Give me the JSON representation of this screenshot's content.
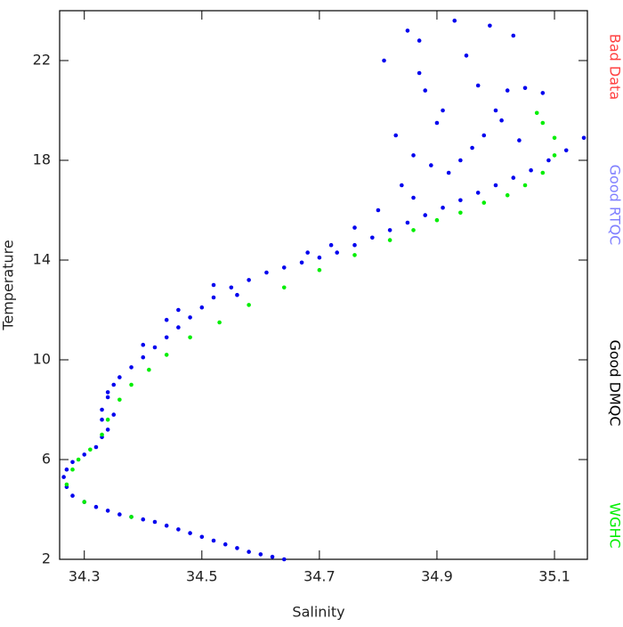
{
  "chart_data": {
    "type": "scatter",
    "x_label": "Salinity",
    "y_label": "Temperature",
    "xlim": [
      34.258,
      35.156
    ],
    "ylim": [
      2,
      24
    ],
    "xticks": [
      34.3,
      34.5,
      34.7,
      34.9,
      35.1
    ],
    "yticks": [
      2,
      6,
      10,
      14,
      18,
      22
    ],
    "series": [
      {
        "name": "Bad Data",
        "color": "#ff4040",
        "x": [],
        "y": []
      },
      {
        "name": "Good RTQC",
        "color": "#0000ee",
        "x": [
          34.64,
          34.62,
          34.6,
          34.58,
          34.56,
          34.54,
          34.52,
          34.5,
          34.48,
          34.46,
          34.44,
          34.42,
          34.4,
          34.38,
          34.36,
          34.34,
          34.32,
          34.3,
          34.28,
          34.27,
          34.265,
          34.27,
          34.28,
          34.3,
          34.32,
          34.33,
          34.34,
          34.33,
          34.33,
          34.34,
          34.35,
          34.36,
          34.38,
          34.4,
          34.42,
          34.44,
          34.46,
          34.48,
          34.5,
          34.52,
          34.55,
          34.58,
          34.61,
          34.64,
          34.67,
          34.7,
          34.73,
          34.76,
          34.79,
          34.82,
          34.85,
          34.88,
          34.91,
          34.94,
          34.97,
          35.0,
          35.03,
          35.06,
          35.09,
          35.12,
          35.15,
          34.85,
          34.81,
          34.87,
          34.88,
          34.9,
          34.83,
          34.86,
          34.93,
          34.95,
          34.97,
          35.0,
          35.02,
          35.03,
          35.05,
          35.08,
          34.96,
          34.92,
          34.89,
          34.84,
          35.01,
          34.98,
          34.8,
          34.76,
          34.86,
          34.94,
          35.04,
          34.87,
          34.91,
          34.99,
          34.35,
          34.34,
          34.46,
          34.52,
          34.56,
          34.72,
          34.68,
          34.44,
          34.4
        ],
        "y": [
          2.0,
          2.1,
          2.2,
          2.3,
          2.45,
          2.6,
          2.75,
          2.9,
          3.05,
          3.2,
          3.35,
          3.5,
          3.6,
          3.7,
          3.8,
          3.95,
          4.1,
          4.3,
          4.55,
          4.9,
          5.3,
          5.6,
          5.9,
          6.2,
          6.5,
          6.9,
          7.2,
          7.6,
          8.0,
          8.5,
          9.0,
          9.3,
          9.7,
          10.1,
          10.5,
          10.9,
          11.3,
          11.7,
          12.1,
          12.5,
          12.9,
          13.2,
          13.5,
          13.7,
          13.9,
          14.1,
          14.3,
          14.6,
          14.9,
          15.2,
          15.5,
          15.8,
          16.1,
          16.4,
          16.7,
          17.0,
          17.3,
          17.6,
          18.0,
          18.4,
          18.9,
          23.2,
          22.0,
          21.5,
          20.8,
          19.5,
          19.0,
          18.2,
          23.6,
          22.2,
          21.0,
          20.0,
          20.8,
          23.0,
          20.9,
          20.7,
          18.5,
          17.5,
          17.8,
          17.0,
          19.6,
          19.0,
          16.0,
          15.3,
          16.5,
          18.0,
          18.8,
          22.8,
          20.0,
          23.4,
          7.8,
          8.7,
          12.0,
          13.0,
          12.6,
          14.6,
          14.3,
          11.6,
          10.6
        ]
      },
      {
        "name": "Good DMQC",
        "color": "#000000",
        "x": [],
        "y": []
      },
      {
        "name": "WGHC",
        "color": "#00ee00",
        "x": [
          34.38,
          34.3,
          34.27,
          34.28,
          34.29,
          34.31,
          34.33,
          34.34,
          34.36,
          34.38,
          34.41,
          34.44,
          34.48,
          34.53,
          34.58,
          34.64,
          34.7,
          34.76,
          34.82,
          34.86,
          34.9,
          34.94,
          34.98,
          35.02,
          35.05,
          35.08,
          35.1,
          35.1,
          35.08,
          35.07
        ],
        "y": [
          3.7,
          4.3,
          5.0,
          5.6,
          6.0,
          6.4,
          7.0,
          7.6,
          8.4,
          9.0,
          9.6,
          10.2,
          10.9,
          11.5,
          12.2,
          12.9,
          13.6,
          14.2,
          14.8,
          15.2,
          15.6,
          15.9,
          16.3,
          16.6,
          17.0,
          17.5,
          18.2,
          18.9,
          19.5,
          19.9
        ]
      }
    ]
  }
}
